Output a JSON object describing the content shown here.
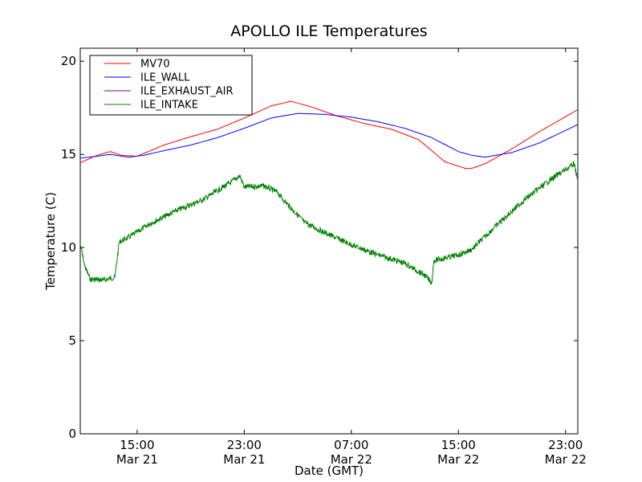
{
  "chart_data": {
    "type": "line",
    "title": "APOLLO ILE Temperatures",
    "xlabel": "Date (GMT)",
    "ylabel": "Temperature (C)",
    "ylim": [
      0,
      20.7
    ],
    "xlim": [
      "2016-03-21 10:45",
      "2016-03-22 23:55"
    ],
    "xticks": [
      {
        "at": "2016-03-21 15:00",
        "line1": "15:00",
        "line2": "Mar 21"
      },
      {
        "at": "2016-03-21 23:00",
        "line1": "23:00",
        "line2": "Mar 21"
      },
      {
        "at": "2016-03-22 07:00",
        "line1": "07:00",
        "line2": "Mar 22"
      },
      {
        "at": "2016-03-22 15:00",
        "line1": "15:00",
        "line2": "Mar 22"
      },
      {
        "at": "2016-03-22 23:00",
        "line1": "23:00",
        "line2": "Mar 22"
      }
    ],
    "yticks": [
      0,
      5,
      10,
      15,
      20
    ],
    "grid": false,
    "legend_position": "top-left",
    "series": [
      {
        "name": "MV70",
        "color": "#ff0000",
        "points": [
          [
            "2016-03-21 10:45",
            14.55
          ],
          [
            "2016-03-21 12:00",
            14.95
          ],
          [
            "2016-03-21 13:00",
            15.15
          ],
          [
            "2016-03-21 13:50",
            14.95
          ],
          [
            "2016-03-21 15:00",
            14.9
          ],
          [
            "2016-03-21 17:00",
            15.5
          ],
          [
            "2016-03-21 19:00",
            15.95
          ],
          [
            "2016-03-21 21:00",
            16.35
          ],
          [
            "2016-03-21 23:00",
            16.95
          ],
          [
            "2016-03-22 01:00",
            17.6
          ],
          [
            "2016-03-22 02:30",
            17.85
          ],
          [
            "2016-03-22 04:00",
            17.55
          ],
          [
            "2016-03-22 06:00",
            17.05
          ],
          [
            "2016-03-22 08:00",
            16.65
          ],
          [
            "2016-03-22 10:00",
            16.35
          ],
          [
            "2016-03-22 12:00",
            15.8
          ],
          [
            "2016-03-22 13:00",
            15.2
          ],
          [
            "2016-03-22 14:00",
            14.6
          ],
          [
            "2016-03-22 15:30",
            14.25
          ],
          [
            "2016-03-22 16:00",
            14.25
          ],
          [
            "2016-03-22 17:00",
            14.5
          ],
          [
            "2016-03-22 19:00",
            15.3
          ],
          [
            "2016-03-22 21:00",
            16.2
          ],
          [
            "2016-03-22 23:55",
            17.4
          ]
        ]
      },
      {
        "name": "ILE_WALL",
        "color": "#0000ff",
        "points": [
          [
            "2016-03-21 10:45",
            14.8
          ],
          [
            "2016-03-21 12:00",
            14.9
          ],
          [
            "2016-03-21 13:00",
            15.0
          ],
          [
            "2016-03-21 14:20",
            14.85
          ],
          [
            "2016-03-21 15:30",
            14.95
          ],
          [
            "2016-03-21 17:00",
            15.2
          ],
          [
            "2016-03-21 19:00",
            15.5
          ],
          [
            "2016-03-21 21:00",
            15.9
          ],
          [
            "2016-03-21 23:00",
            16.4
          ],
          [
            "2016-03-22 01:00",
            16.95
          ],
          [
            "2016-03-22 03:00",
            17.2
          ],
          [
            "2016-03-22 05:00",
            17.15
          ],
          [
            "2016-03-22 07:00",
            17.0
          ],
          [
            "2016-03-22 09:00",
            16.75
          ],
          [
            "2016-03-22 11:00",
            16.4
          ],
          [
            "2016-03-22 13:00",
            15.9
          ],
          [
            "2016-03-22 15:00",
            15.15
          ],
          [
            "2016-03-22 16:00",
            14.95
          ],
          [
            "2016-03-22 17:00",
            14.85
          ],
          [
            "2016-03-22 19:00",
            15.1
          ],
          [
            "2016-03-22 21:00",
            15.6
          ],
          [
            "2016-03-22 23:55",
            16.6
          ]
        ]
      },
      {
        "name": "ILE_EXHAUST_AIR",
        "color": "#800080",
        "points": []
      },
      {
        "name": "ILE_INTAKE",
        "color": "#008000",
        "points": [
          [
            "2016-03-21 10:45",
            10.2
          ],
          [
            "2016-03-21 11:05",
            9.0
          ],
          [
            "2016-03-21 11:30",
            8.3
          ],
          [
            "2016-03-21 12:30",
            8.25
          ],
          [
            "2016-03-21 13:20",
            8.4
          ],
          [
            "2016-03-21 13:40",
            10.3
          ],
          [
            "2016-03-21 14:30",
            10.6
          ],
          [
            "2016-03-21 16:00",
            11.3
          ],
          [
            "2016-03-21 18:00",
            12.0
          ],
          [
            "2016-03-21 20:00",
            12.6
          ],
          [
            "2016-03-21 22:00",
            13.5
          ],
          [
            "2016-03-21 22:40",
            13.85
          ],
          [
            "2016-03-21 23:00",
            13.25
          ],
          [
            "2016-03-22 00:30",
            13.3
          ],
          [
            "2016-03-22 01:30",
            12.95
          ],
          [
            "2016-03-22 02:00",
            12.5
          ],
          [
            "2016-03-22 03:30",
            11.35
          ],
          [
            "2016-03-22 05:00",
            10.8
          ],
          [
            "2016-03-22 07:00",
            10.15
          ],
          [
            "2016-03-22 09:00",
            9.6
          ],
          [
            "2016-03-22 11:00",
            9.15
          ],
          [
            "2016-03-22 12:30",
            8.5
          ],
          [
            "2016-03-22 13:00",
            8.1
          ],
          [
            "2016-03-22 13:10",
            9.3
          ],
          [
            "2016-03-22 15:00",
            9.6
          ],
          [
            "2016-03-22 16:00",
            9.9
          ],
          [
            "2016-03-22 18:00",
            11.3
          ],
          [
            "2016-03-22 20:00",
            12.6
          ],
          [
            "2016-03-22 22:00",
            13.7
          ],
          [
            "2016-03-22 23:40",
            14.5
          ],
          [
            "2016-03-22 23:55",
            13.5
          ]
        ]
      }
    ]
  }
}
